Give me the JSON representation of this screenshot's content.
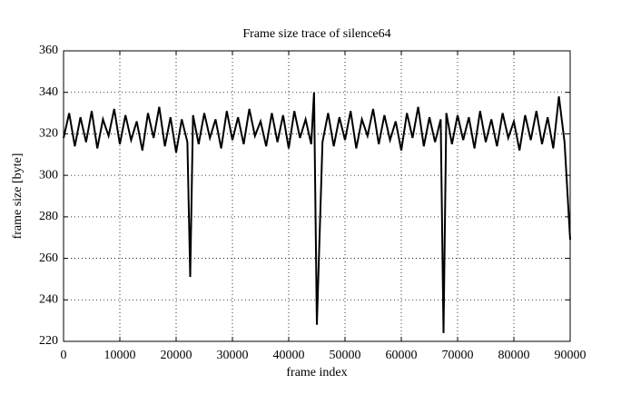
{
  "chart_data": {
    "type": "line",
    "title": "Frame size trace of silence64",
    "x_label": "frame index",
    "y_label": "frame size [byte]",
    "x": [
      0,
      1000,
      2000,
      3000,
      4000,
      5000,
      6000,
      7000,
      8000,
      9000,
      10000,
      11000,
      12000,
      13000,
      14000,
      15000,
      16000,
      17000,
      18000,
      19000,
      20000,
      21000,
      22000,
      22500,
      23000,
      24000,
      25000,
      26000,
      27000,
      28000,
      29000,
      30000,
      31000,
      32000,
      33000,
      34000,
      35000,
      36000,
      37000,
      38000,
      39000,
      40000,
      41000,
      42000,
      43000,
      44000,
      44500,
      45000,
      46000,
      47000,
      48000,
      49000,
      50000,
      51000,
      52000,
      53000,
      54000,
      55000,
      56000,
      57000,
      58000,
      59000,
      60000,
      61000,
      62000,
      63000,
      64000,
      65000,
      66000,
      67000,
      67500,
      68000,
      69000,
      70000,
      71000,
      72000,
      73000,
      74000,
      75000,
      76000,
      77000,
      78000,
      79000,
      80000,
      81000,
      82000,
      83000,
      84000,
      85000,
      86000,
      87000,
      88000,
      89000,
      90000
    ],
    "series": [
      {
        "color": "#000000",
        "values": [
          318,
          330,
          314,
          328,
          316,
          331,
          313,
          327,
          319,
          332,
          315,
          329,
          317,
          326,
          312,
          330,
          318,
          333,
          314,
          328,
          311,
          327,
          316,
          251,
          329,
          315,
          330,
          318,
          327,
          313,
          331,
          317,
          328,
          315,
          332,
          319,
          326,
          314,
          330,
          316,
          329,
          313,
          331,
          318,
          327,
          315,
          340,
          228,
          316,
          330,
          314,
          328,
          317,
          331,
          313,
          327,
          319,
          332,
          315,
          329,
          317,
          326,
          312,
          330,
          318,
          333,
          314,
          328,
          316,
          327,
          224,
          330,
          315,
          329,
          317,
          328,
          313,
          331,
          316,
          327,
          314,
          330,
          318,
          326,
          312,
          329,
          317,
          331,
          315,
          328,
          313,
          338,
          316,
          269
        ]
      }
    ],
    "xlim": [
      0,
      90000
    ],
    "ylim": [
      220,
      360
    ],
    "xticks": [
      0,
      10000,
      20000,
      30000,
      40000,
      50000,
      60000,
      70000,
      80000,
      90000
    ],
    "yticks": [
      220,
      240,
      260,
      280,
      300,
      320,
      340,
      360
    ],
    "grid": true
  }
}
